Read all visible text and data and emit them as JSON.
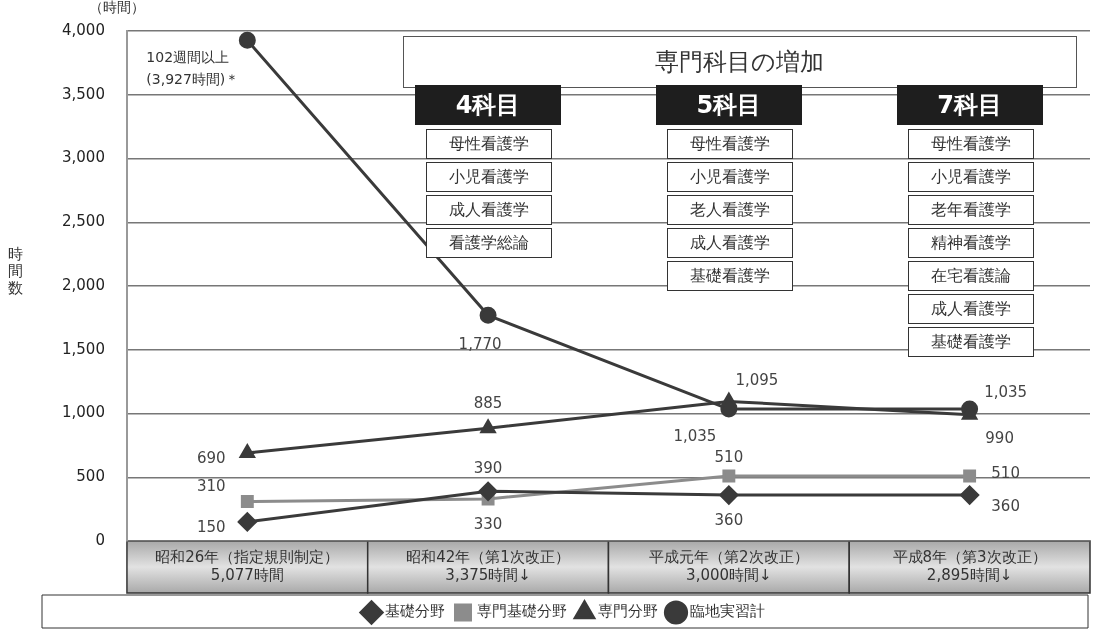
{
  "chart_data": {
    "type": "line",
    "ylabel": "時間数",
    "categories": [
      "昭和26年（指定規則制定）\n5,077時間",
      "昭和42年（第1次改正）\n3,375時間↓",
      "平成元年（第2次改正）\n3,000時間↓",
      "平成8年（第3次改正）\n2,895時間↓"
    ],
    "series": [
      {
        "name": "基礎分野",
        "color": "#3a3a3a",
        "marker": "diamond",
        "values": [
          150,
          390,
          360,
          360
        ],
        "value_labels": [
          "150",
          "390",
          "360",
          "360"
        ]
      },
      {
        "name": "専門基礎分野",
        "color": "#8c8c8c",
        "marker": "square",
        "values": [
          310,
          330,
          510,
          510
        ],
        "value_labels": [
          "310",
          "330",
          "510",
          "510"
        ]
      },
      {
        "name": "専門分野",
        "color": "#3a3a3a",
        "marker": "triangle",
        "values": [
          690,
          885,
          1095,
          990
        ],
        "value_labels": [
          "690",
          "885",
          "1,095",
          "990"
        ]
      },
      {
        "name": "臨地実習計",
        "color": "#3a3a3a",
        "marker": "circle",
        "values": [
          3927,
          1770,
          1035,
          1035
        ],
        "value_labels": [
          null,
          "1,770",
          "1,035",
          "1,035"
        ]
      }
    ],
    "ylim": [
      0,
      4000
    ],
    "yticks": [
      0,
      500,
      {
        "value": 1000,
        "label": "1,000"
      },
      {
        "value": 1500,
        "label": "1,500"
      },
      {
        "value": 2000,
        "label": "2,000"
      },
      {
        "value": 2500,
        "label": "2,500"
      },
      {
        "value": 3000,
        "label": "3,000"
      },
      {
        "value": 3500,
        "label": "3,500"
      },
      {
        "value": 4000,
        "label": "4,000"
      }
    ],
    "grid": "y",
    "legend": "bottom",
    "line_style": "solid",
    "annotations": [
      "（時間）",
      {
        "text": "102週間以上\n(3,927時間)＊",
        "x": "昭和26年（指定規則制定）\n5,077時間",
        "y": 3927
      },
      "専門科目の増加",
      "4科目",
      "母性看護学",
      "小児看護学",
      "成人看護学",
      "看護学総論",
      "5科目",
      "母性看護学",
      "小児看護学",
      "老人看護学",
      "成人看護学",
      "基礎看護学",
      "7科目",
      "母性看護学",
      "小児看護学",
      "老年看護学",
      "精神看護学",
      "在宅看護論",
      "成人看護学",
      "基礎看護学"
    ]
  }
}
